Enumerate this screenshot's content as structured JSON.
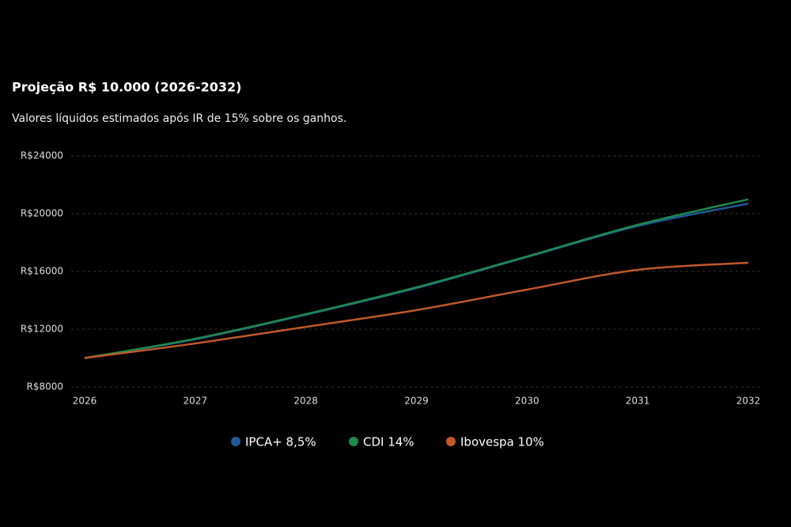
{
  "chart_data": {
    "type": "line",
    "title": "Projeção R$ 10.000 (2026-2032)",
    "subtitle": "Valores líquidos estimados após IR de 15% sobre os ganhos.",
    "categories": [
      "2026",
      "2027",
      "2028",
      "2029",
      "2030",
      "2031",
      "2032"
    ],
    "series": [
      {
        "name": "IPCA+ 8,5%",
        "color": "#1f5a96",
        "values": [
          10000,
          11300,
          13000,
          14850,
          17000,
          19150,
          20700
        ]
      },
      {
        "name": "CDI 14%",
        "color": "#1e8a4c",
        "values": [
          10000,
          11340,
          13040,
          14900,
          17040,
          19230,
          20990
        ]
      },
      {
        "name": "Ibovespa 10%",
        "color": "#c0582a",
        "values": [
          10000,
          11010,
          12160,
          13320,
          14740,
          16110,
          16600
        ]
      }
    ],
    "ylim": [
      8000,
      24000
    ],
    "yticks": [
      {
        "value": 8000,
        "label": "R$8000"
      },
      {
        "value": 12000,
        "label": "R$12000"
      },
      {
        "value": 16000,
        "label": "R$16000"
      },
      {
        "value": 20000,
        "label": "R$20000"
      },
      {
        "value": 24000,
        "label": "R$24000"
      }
    ],
    "grid": true
  }
}
